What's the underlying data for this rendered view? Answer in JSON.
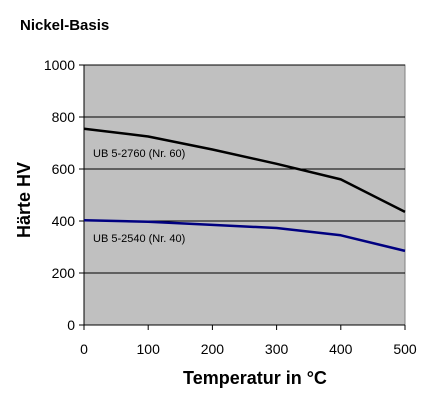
{
  "chart_data": {
    "type": "line",
    "title": "Nickel-Basis",
    "xlabel": "Temperatur in °C",
    "ylabel": "Härte HV",
    "xlim": [
      0,
      500
    ],
    "ylim": [
      0,
      1000
    ],
    "xticks": [
      0,
      100,
      200,
      300,
      400,
      500
    ],
    "yticks": [
      0,
      200,
      400,
      600,
      800,
      1000
    ],
    "grid": "horizontal",
    "plot_background": "#c0c0c0",
    "series": [
      {
        "name": "UB 5-2760 (Nr. 60)",
        "color": "#000000",
        "x": [
          0,
          100,
          200,
          300,
          400,
          500
        ],
        "y": [
          755,
          725,
          675,
          620,
          560,
          435
        ]
      },
      {
        "name": "UB 5-2540 (Nr. 40)",
        "color": "#000080",
        "x": [
          0,
          100,
          200,
          300,
          400,
          500
        ],
        "y": [
          403,
          397,
          385,
          373,
          345,
          285
        ]
      }
    ]
  }
}
